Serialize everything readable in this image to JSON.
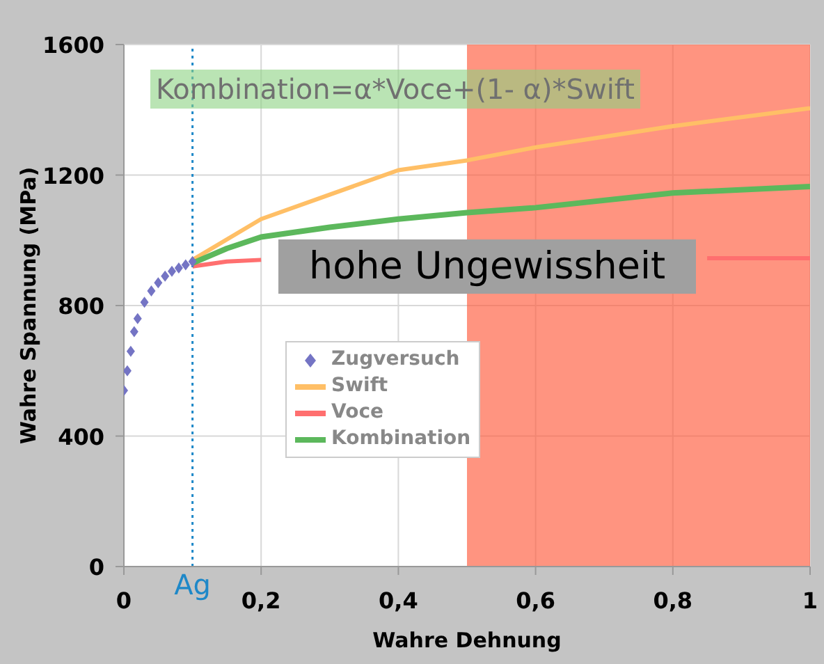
{
  "chart_data": {
    "type": "line",
    "xlabel": "Wahre Dehnung",
    "ylabel": "Wahre Spannung (MPa)",
    "xlim": [
      0,
      1
    ],
    "ylim": [
      0,
      1600
    ],
    "xticks": [
      0,
      {
        "value": 0.2,
        "label": "0,2"
      },
      {
        "value": 0.4,
        "label": "0,4"
      },
      {
        "value": 0.6,
        "label": "0,6"
      },
      {
        "value": 0.8,
        "label": "0,8"
      },
      1
    ],
    "yticks": [
      0,
      400,
      800,
      1200,
      1600
    ],
    "grid": true,
    "legend": "center",
    "series": [
      {
        "name": "Zugversuch",
        "type": "scatter",
        "marker": "diamond",
        "color": "#7474c4",
        "x": [
          0,
          0.005,
          0.01,
          0.015,
          0.02,
          0.03,
          0.04,
          0.05,
          0.06,
          0.07,
          0.08,
          0.09,
          0.1
        ],
        "values": [
          540,
          600,
          660,
          720,
          760,
          810,
          845,
          870,
          890,
          905,
          915,
          925,
          935
        ]
      },
      {
        "name": "Swift",
        "color": "#ffbf66",
        "x": [
          0.1,
          0.2,
          0.3,
          0.4,
          0.5,
          0.6,
          0.8,
          1
        ],
        "values": [
          940,
          1065,
          1140,
          1215,
          1245,
          1285,
          1350,
          1405
        ]
      },
      {
        "name": "Voce",
        "color": "#ff6f6f",
        "x": [
          0.1,
          0.15,
          0.2,
          0.4,
          0.6,
          0.8,
          0.85,
          1
        ],
        "values": [
          920,
          935,
          940,
          null,
          null,
          null,
          945,
          945
        ]
      },
      {
        "name": "Kombination",
        "color": "#5cb85c",
        "x": [
          0.1,
          0.15,
          0.2,
          0.3,
          0.4,
          0.5,
          0.6,
          0.8,
          1
        ],
        "values": [
          930,
          975,
          1010,
          1040,
          1065,
          1085,
          1100,
          1145,
          1165
        ]
      }
    ],
    "bands": [
      {
        "axis": "x",
        "from": 0.5,
        "to": 1,
        "color": "#ff5a3c"
      }
    ],
    "ref_lines": [
      {
        "axis": "x",
        "value": 0.1,
        "label": "Ag",
        "color": "#1e88c8",
        "line_style": "dotted"
      }
    ],
    "annotations": [
      "Kombination=α*Voce+(1- α)*Swift",
      "hohe Ungewissheit"
    ]
  }
}
